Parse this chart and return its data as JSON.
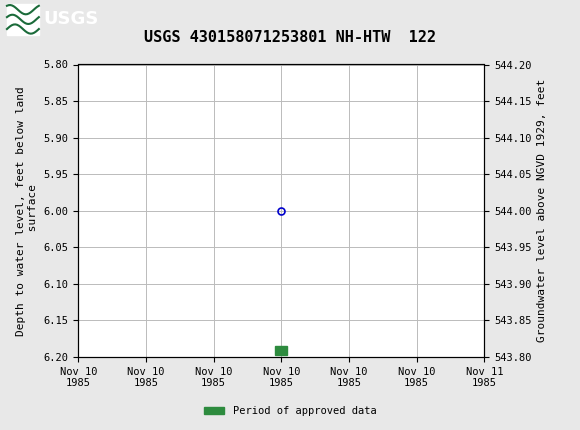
{
  "title": "USGS 430158071253801 NH-HTW  122",
  "header_color": "#1b6b3a",
  "ylabel_left": "Depth to water level, feet below land\n surface",
  "ylabel_right": "Groundwater level above NGVD 1929, feet",
  "ylim_left": [
    5.8,
    6.2
  ],
  "ylim_right": [
    544.2,
    543.8
  ],
  "yticks_left": [
    5.8,
    5.85,
    5.9,
    5.95,
    6.0,
    6.05,
    6.1,
    6.15,
    6.2
  ],
  "yticks_right": [
    544.2,
    544.15,
    544.1,
    544.05,
    544.0,
    543.95,
    543.9,
    543.85,
    543.8
  ],
  "ytick_labels_right": [
    "544.20",
    "544.15",
    "544.10",
    "544.05",
    "544.00",
    "543.95",
    "543.90",
    "543.85",
    "543.80"
  ],
  "xlim": [
    0,
    6
  ],
  "xtick_labels": [
    "Nov 10\n1985",
    "Nov 10\n1985",
    "Nov 10\n1985",
    "Nov 10\n1985",
    "Nov 10\n1985",
    "Nov 10\n1985",
    "Nov 11\n1985"
  ],
  "xtick_positions": [
    0,
    1,
    2,
    3,
    4,
    5,
    6
  ],
  "data_point_x": 3,
  "data_point_y": 6.0,
  "data_point_color": "#0000cc",
  "data_point_markersize": 5,
  "bar_x_center": 3.0,
  "bar_y_top": 6.185,
  "bar_color": "#2d8b3e",
  "bar_width": 0.18,
  "bar_height": 0.013,
  "legend_label": "Period of approved data",
  "legend_color": "#2d8b3e",
  "grid_color": "#bbbbbb",
  "background_color": "#e8e8e8",
  "plot_bg_color": "#ffffff",
  "font_family": "monospace",
  "title_fontsize": 11,
  "tick_fontsize": 7.5,
  "label_fontsize": 8
}
